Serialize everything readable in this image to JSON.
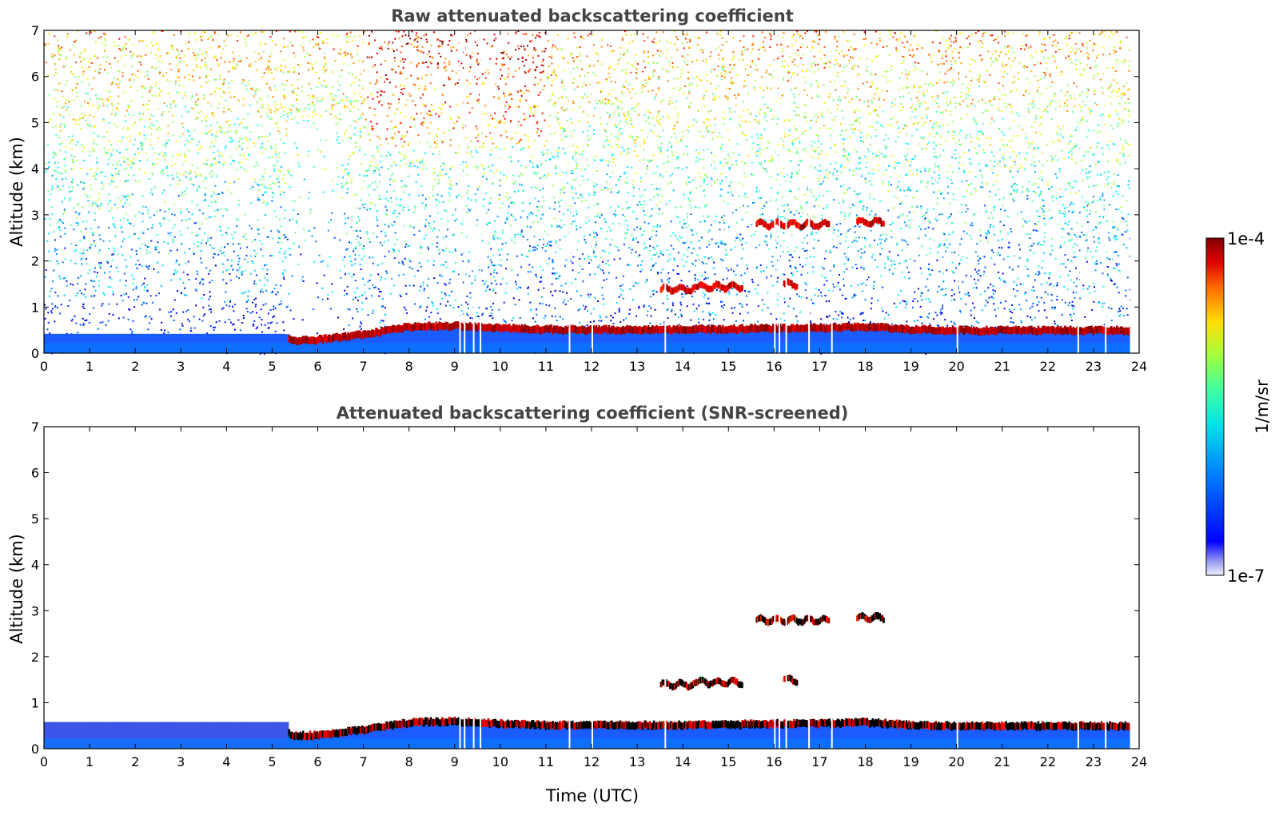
{
  "chart_data": [
    {
      "type": "heatmap",
      "title": "Raw attenuated backscattering coefficient",
      "xlabel": "",
      "ylabel": "Altitude (km)",
      "xlim": [
        0,
        24
      ],
      "ylim": [
        0,
        7
      ],
      "x_ticks": [
        "0",
        "1",
        "2",
        "3",
        "4",
        "5",
        "6",
        "7",
        "8",
        "9",
        "10",
        "11",
        "12",
        "13",
        "14",
        "15",
        "16",
        "17",
        "18",
        "19",
        "20",
        "21",
        "22",
        "23",
        "24"
      ],
      "y_ticks": [
        "0",
        "1",
        "2",
        "3",
        "4",
        "5",
        "6",
        "7"
      ],
      "data_end_time": 23.8,
      "noise": true,
      "boundary_layer": [
        [
          0,
          0.42
        ],
        [
          5.3,
          0.42
        ],
        [
          5.4,
          0.28
        ],
        [
          6,
          0.3
        ],
        [
          7,
          0.42
        ],
        [
          8,
          0.58
        ],
        [
          9,
          0.6
        ],
        [
          10,
          0.55
        ],
        [
          11,
          0.52
        ],
        [
          12,
          0.52
        ],
        [
          13,
          0.52
        ],
        [
          14,
          0.52
        ],
        [
          15,
          0.53
        ],
        [
          16,
          0.55
        ],
        [
          17,
          0.55
        ],
        [
          18,
          0.58
        ],
        [
          19,
          0.52
        ],
        [
          20,
          0.5
        ],
        [
          21,
          0.5
        ],
        [
          22,
          0.5
        ],
        [
          23,
          0.5
        ],
        [
          23.8,
          0.5
        ]
      ],
      "cloud_layers": [
        {
          "x_start": 15.6,
          "x_end": 17.2,
          "altitude": 2.8
        },
        {
          "x_start": 17.8,
          "x_end": 18.4,
          "altitude": 2.85
        },
        {
          "x_start": 13.5,
          "x_end": 14.3,
          "altitude": 1.4
        },
        {
          "x_start": 14.3,
          "x_end": 15.3,
          "altitude": 1.45
        },
        {
          "x_start": 16.2,
          "x_end": 16.5,
          "altitude": 1.5
        }
      ],
      "gaps": [
        9.1,
        9.2,
        9.4,
        9.55,
        11.5,
        12.0,
        13.6,
        16.0,
        16.1,
        16.25,
        16.75,
        17.25,
        20.0,
        22.65,
        23.25
      ]
    },
    {
      "type": "heatmap",
      "title": "Attenuated backscattering coefficient (SNR-screened)",
      "xlabel": "Time (UTC)",
      "ylabel": "Altitude (km)",
      "xlim": [
        0,
        24
      ],
      "ylim": [
        0,
        7
      ],
      "x_ticks": [
        "0",
        "1",
        "2",
        "3",
        "4",
        "5",
        "6",
        "7",
        "8",
        "9",
        "10",
        "11",
        "12",
        "13",
        "14",
        "15",
        "16",
        "17",
        "18",
        "19",
        "20",
        "21",
        "22",
        "23",
        "24"
      ],
      "y_ticks": [
        "0",
        "1",
        "2",
        "3",
        "4",
        "5",
        "6",
        "7"
      ],
      "data_end_time": 23.8,
      "noise": false,
      "boundary_layer": [
        [
          0,
          0.42
        ],
        [
          5.3,
          0.42
        ],
        [
          5.4,
          0.28
        ],
        [
          6,
          0.3
        ],
        [
          7,
          0.42
        ],
        [
          8,
          0.58
        ],
        [
          9,
          0.6
        ],
        [
          10,
          0.55
        ],
        [
          11,
          0.52
        ],
        [
          12,
          0.52
        ],
        [
          13,
          0.52
        ],
        [
          14,
          0.52
        ],
        [
          15,
          0.53
        ],
        [
          16,
          0.55
        ],
        [
          17,
          0.55
        ],
        [
          18,
          0.58
        ],
        [
          19,
          0.52
        ],
        [
          20,
          0.5
        ],
        [
          21,
          0.5
        ],
        [
          22,
          0.5
        ],
        [
          23,
          0.5
        ],
        [
          23.8,
          0.5
        ]
      ],
      "cloud_layers": [
        {
          "x_start": 15.6,
          "x_end": 17.2,
          "altitude": 2.8
        },
        {
          "x_start": 17.8,
          "x_end": 18.4,
          "altitude": 2.85
        },
        {
          "x_start": 13.5,
          "x_end": 14.3,
          "altitude": 1.4
        },
        {
          "x_start": 14.3,
          "x_end": 15.3,
          "altitude": 1.45
        },
        {
          "x_start": 16.2,
          "x_end": 16.5,
          "altitude": 1.5
        }
      ],
      "gaps": [
        9.1,
        9.2,
        9.4,
        9.55,
        11.5,
        12.0,
        13.6,
        16.0,
        16.1,
        16.25,
        16.75,
        17.25,
        20.0,
        22.65,
        23.25
      ]
    }
  ],
  "colorbar": {
    "max_label": "1e-4",
    "min_label": "1e-7",
    "unit_label": "1/m/sr",
    "colormap": "jet"
  }
}
